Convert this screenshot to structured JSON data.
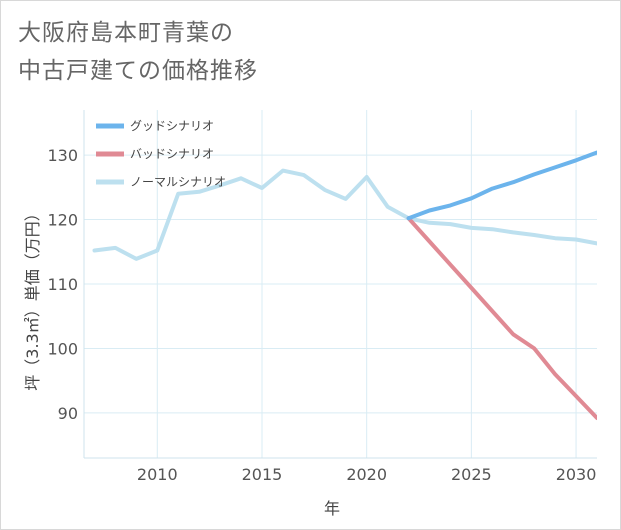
{
  "chart_data": {
    "type": "line",
    "title_line1": "大阪府島本町青葉の",
    "title_line2": "中古戸建ての価格推移",
    "xlabel": "年",
    "ylabel": "坪（3.3㎡）単価（万円）",
    "xlim": [
      2006.5,
      2031
    ],
    "ylim": [
      83,
      137
    ],
    "xticks": [
      2010,
      2015,
      2020,
      2025,
      2030
    ],
    "yticks": [
      90,
      100,
      110,
      120,
      130
    ],
    "grid": true,
    "legend_position": "top-left",
    "series": [
      {
        "name": "グッドシナリオ",
        "color": "#6cb4ec",
        "x": [
          2022,
          2023,
          2024,
          2025,
          2026,
          2027,
          2028,
          2029,
          2030,
          2031
        ],
        "values": [
          120.2,
          121.4,
          122.2,
          123.3,
          124.8,
          125.8,
          127.0,
          128.1,
          129.2,
          130.4
        ]
      },
      {
        "name": "バッドシナリオ",
        "color": "#e08a94",
        "x": [
          2022,
          2023,
          2024,
          2025,
          2026,
          2027,
          2028,
          2029,
          2030,
          2031
        ],
        "values": [
          120.2,
          116.6,
          113.0,
          109.4,
          105.8,
          102.2,
          100.0,
          96.0,
          92.6,
          89.2
        ]
      },
      {
        "name": "ノーマルシナリオ",
        "color": "#bde0ef",
        "x": [
          2007,
          2008,
          2009,
          2010,
          2011,
          2012,
          2013,
          2014,
          2015,
          2016,
          2017,
          2018,
          2019,
          2020,
          2021,
          2022,
          2023,
          2024,
          2025,
          2026,
          2027,
          2028,
          2029,
          2030,
          2031
        ],
        "values": [
          115.2,
          115.6,
          113.9,
          115.2,
          124.0,
          124.3,
          125.3,
          126.4,
          124.9,
          127.6,
          126.9,
          124.6,
          123.2,
          126.6,
          122.0,
          120.2,
          119.5,
          119.3,
          118.7,
          118.5,
          118.0,
          117.6,
          117.1,
          116.9,
          116.3
        ]
      }
    ]
  }
}
